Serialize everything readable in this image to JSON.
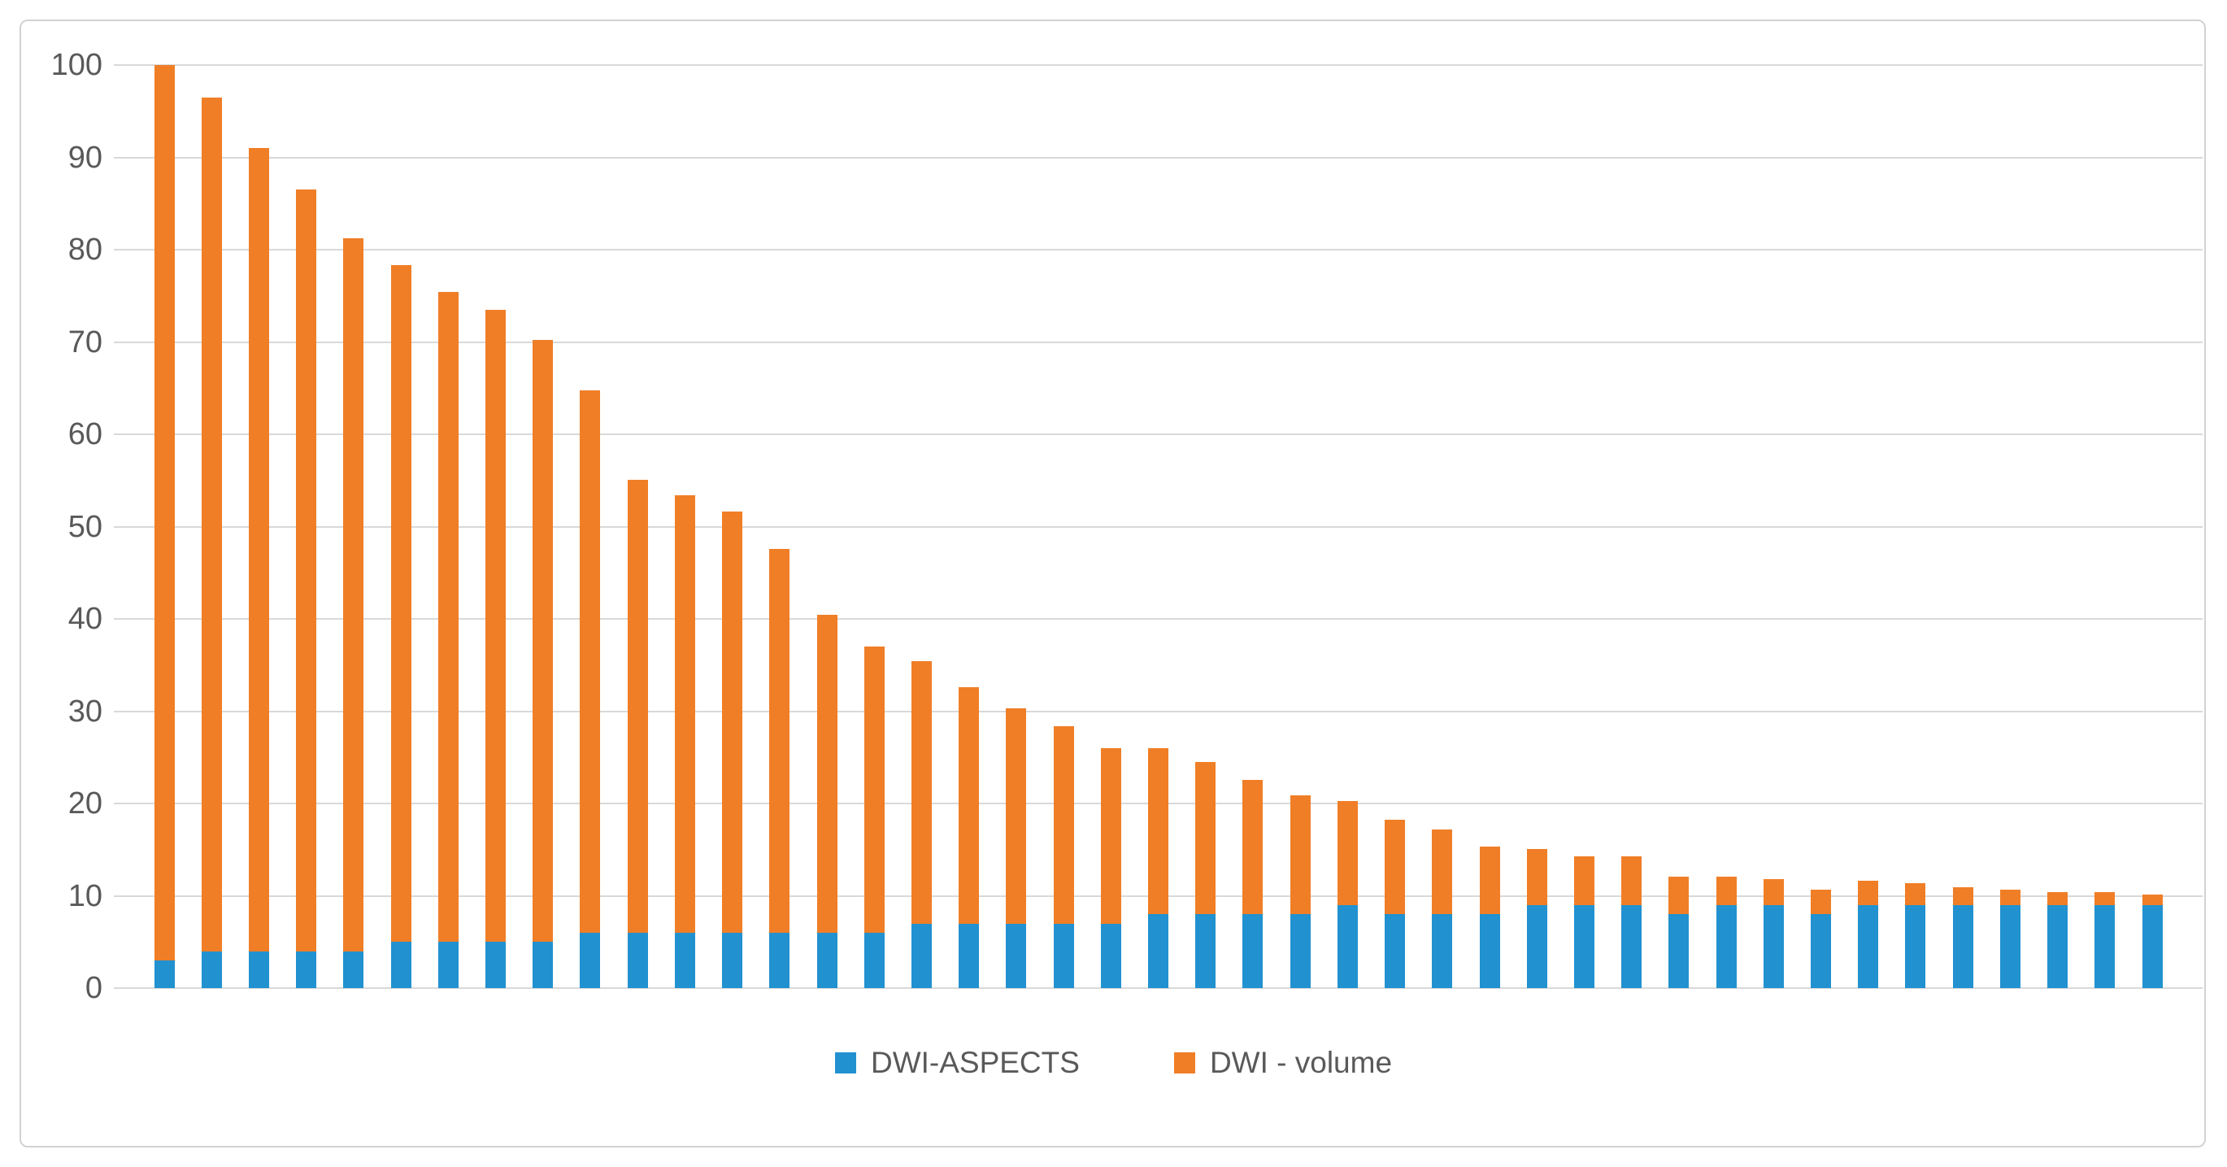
{
  "chart_data": {
    "type": "bar",
    "stacked": true,
    "orientation": "vertical",
    "title": "",
    "xlabel": "",
    "ylabel": "",
    "bar_count": 43,
    "categories": [],
    "series": [
      {
        "name": "DWI-ASPECTS",
        "color": "#2191D0",
        "values": [
          3,
          4,
          4,
          4,
          4,
          5,
          5,
          5,
          5,
          6,
          6,
          6,
          6,
          6,
          6,
          6,
          7,
          7,
          7,
          7,
          7,
          8,
          8,
          8,
          8,
          9,
          8,
          8,
          8,
          9,
          9,
          9,
          8,
          9,
          9,
          8,
          9,
          9,
          9,
          9,
          9,
          9,
          9
        ]
      },
      {
        "name": "DWI - volume",
        "color": "#F07E26",
        "values": [
          97,
          92.5,
          87,
          82.5,
          77.2,
          73.3,
          70.4,
          68.5,
          65.2,
          58.8,
          49.1,
          47.4,
          45.6,
          41.6,
          34.4,
          31,
          28.4,
          25.6,
          23.3,
          21.4,
          19,
          18,
          16.5,
          14.6,
          12.9,
          11.3,
          10.2,
          9.2,
          7.3,
          6.1,
          5.3,
          5.3,
          4.1,
          3.1,
          2.8,
          2.7,
          2.6,
          2.4,
          1.9,
          1.7,
          1.4,
          1.4,
          1.1
        ]
      }
    ],
    "ylim": [
      0,
      100
    ],
    "yticks": [
      0,
      10,
      20,
      30,
      40,
      50,
      60,
      70,
      80,
      90,
      100
    ],
    "grid": true,
    "gridline_color": "#D9D9D9",
    "legend_position": "bottom"
  },
  "legend": {
    "items": [
      {
        "label": "DWI-ASPECTS",
        "color": "#2191D0"
      },
      {
        "label": "DWI - volume",
        "color": "#F07E26"
      }
    ]
  },
  "axis": {
    "tick_label_color": "#595959"
  }
}
